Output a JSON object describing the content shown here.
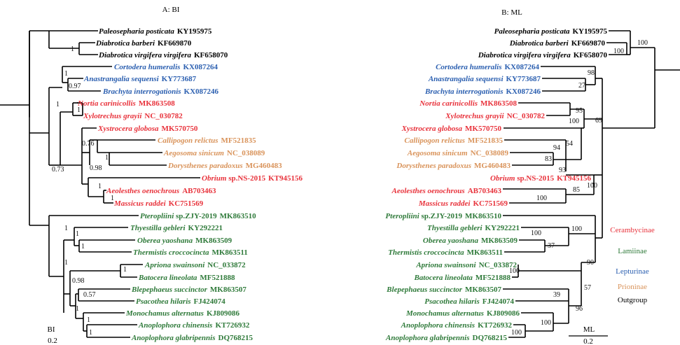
{
  "panels": {
    "bi": {
      "title": "A: BI",
      "scale_name": "BI",
      "scale_value": "0.2"
    },
    "ml": {
      "title": "B: ML",
      "scale_name": "ML",
      "scale_value": "0.2"
    }
  },
  "colors": {
    "Cerambycinae": "#e8323b",
    "Lamiinae": "#2f7a3a",
    "Lepturinae": "#2b5fb0",
    "Prioninae": "#d9935a",
    "Outgroup": "#000000"
  },
  "legend": [
    "Cerambycinae",
    "Lamiinae",
    "Lepturinae",
    "Prioninae",
    "Outgroup"
  ],
  "taxa": [
    {
      "name": "Paleosepharia posticata",
      "acc": "KY195975",
      "group": "Outgroup"
    },
    {
      "name": "Diabrotica barberi",
      "acc": "KF669870",
      "group": "Outgroup"
    },
    {
      "name": "Diabrotica virgifera virgifera",
      "acc": "KF658070",
      "group": "Outgroup"
    },
    {
      "name": "Cortodera humeralis",
      "acc": "KX087264",
      "group": "Lepturinae"
    },
    {
      "name": "Anastrangalia sequensi",
      "acc": "KY773687",
      "group": "Lepturinae"
    },
    {
      "name": "Brachyta interrogationis",
      "acc": "KX087246",
      "group": "Lepturinae"
    },
    {
      "name": "Nortia carinicollis",
      "acc": "MK863508",
      "group": "Cerambycinae"
    },
    {
      "name": "Xylotrechus grayii",
      "acc": "NC_030782",
      "group": "Cerambycinae"
    },
    {
      "name": "Xystrocera globosa",
      "acc": "MK570750",
      "group": "Cerambycinae"
    },
    {
      "name": "Callipogon relictus",
      "acc": "MF521835",
      "group": "Prioninae"
    },
    {
      "name": "Aegosoma sinicum",
      "acc": "NC_038089",
      "group": "Prioninae"
    },
    {
      "name": "Dorysthenes paradoxus",
      "acc": "MG460483",
      "group": "Prioninae"
    },
    {
      "name": "Obrium",
      "name_rest": " sp.NS-2015",
      "acc": "KT945156",
      "group": "Cerambycinae"
    },
    {
      "name": "Aeolesthes oenochrous",
      "acc": "AB703463",
      "group": "Cerambycinae"
    },
    {
      "name": "Massicus raddei",
      "acc": "KC751569",
      "group": "Cerambycinae"
    },
    {
      "name": "Pteropliini",
      "name_rest": " sp.ZJY-2019",
      "acc": "MK863510",
      "group": "Lamiinae"
    },
    {
      "name": "Thyestilla gebleri",
      "acc": "KY292221",
      "group": "Lamiinae"
    },
    {
      "name": "Oberea yaoshana",
      "acc": "MK863509",
      "group": "Lamiinae"
    },
    {
      "name": "Thermistis croccocincta",
      "acc": "MK863511",
      "group": "Lamiinae"
    },
    {
      "name": "Apriona swainsoni",
      "acc": "NC_033872",
      "group": "Lamiinae"
    },
    {
      "name": "Batocera lineolata",
      "acc": "MF521888",
      "group": "Lamiinae"
    },
    {
      "name": "Blepephaeus succinctor",
      "acc": "MK863507",
      "group": "Lamiinae"
    },
    {
      "name": "Psacothea hilaris",
      "acc": "FJ424074",
      "group": "Lamiinae"
    },
    {
      "name": "Monochamus alternatus",
      "acc": "KJ809086",
      "group": "Lamiinae"
    },
    {
      "name": "Anoplophora chinensis",
      "acc": "KT726932",
      "group": "Lamiinae"
    },
    {
      "name": "Anoplophora glabripennis",
      "acc": "DQ768215",
      "group": "Lamiinae"
    }
  ],
  "support_bi": [
    "1",
    "0.97",
    "1",
    "1",
    "0.76",
    "1",
    "0.98",
    "1",
    "1",
    "0.73",
    "1",
    "1",
    "1",
    "1",
    "1",
    "0.98",
    "0.57",
    "1",
    "1"
  ],
  "support_ml": [
    "100",
    "100",
    "98",
    "27",
    "95",
    "100",
    "69",
    "54",
    "94",
    "83",
    "93",
    "85",
    "100",
    "100",
    "100",
    "100",
    "37",
    "90",
    "100",
    "57",
    "39",
    "96",
    "100",
    "100"
  ]
}
